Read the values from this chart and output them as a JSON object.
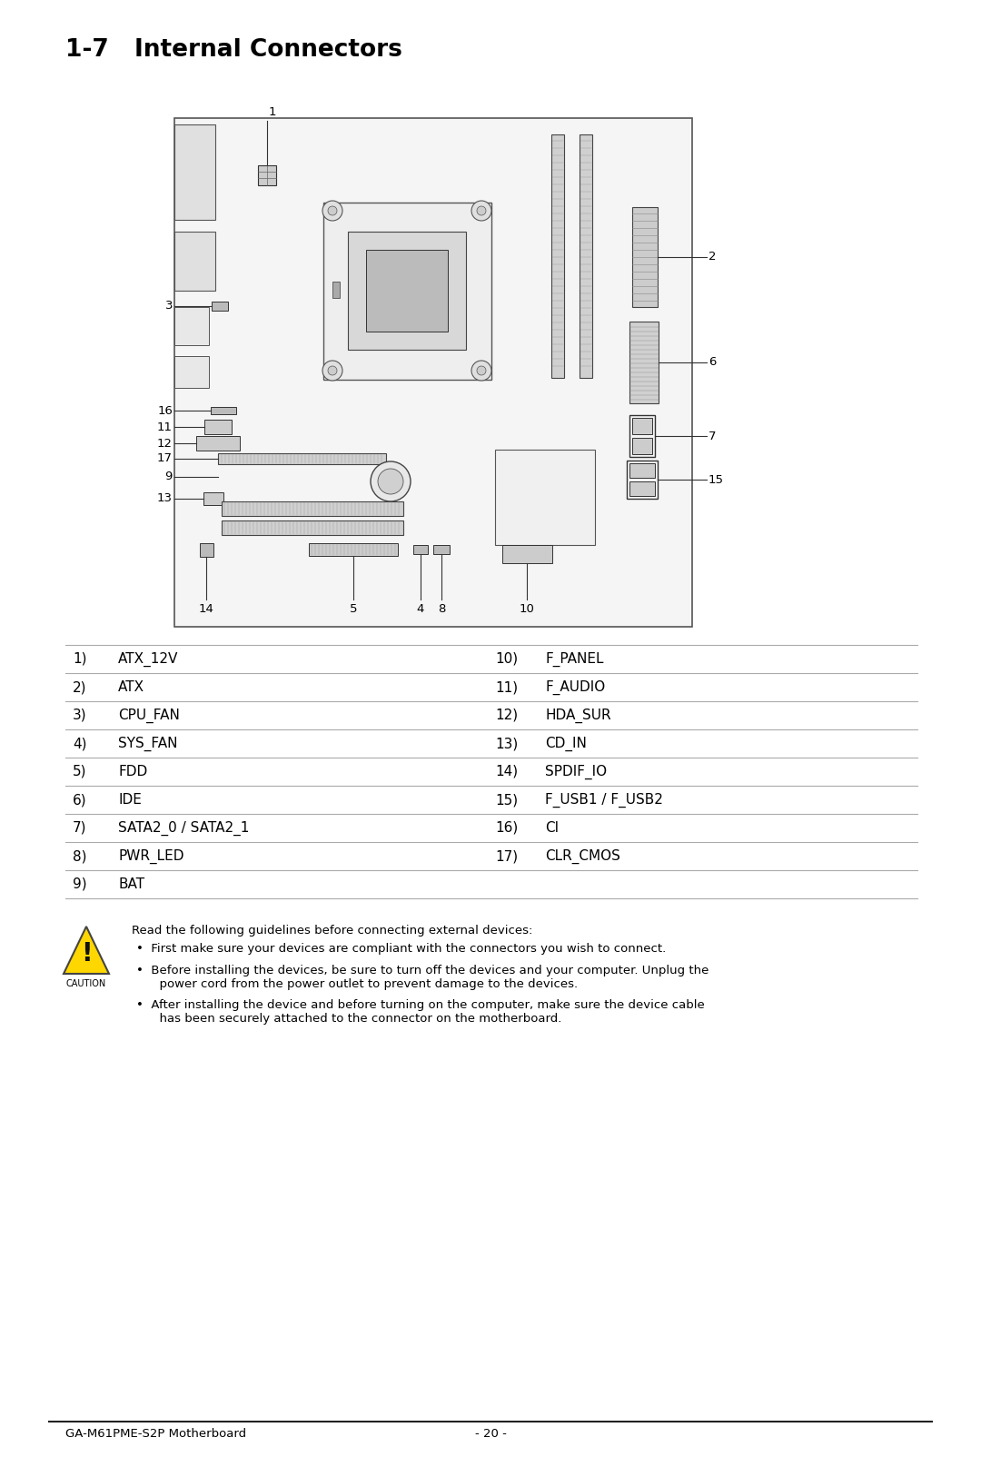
{
  "title_num": "1-7",
  "title_text": "Internal Connectors",
  "bg_color": "#ffffff",
  "text_color": "#000000",
  "table_left": [
    [
      "1)",
      "ATX_12V"
    ],
    [
      "2)",
      "ATX"
    ],
    [
      "3)",
      "CPU_FAN"
    ],
    [
      "4)",
      "SYS_FAN"
    ],
    [
      "5)",
      "FDD"
    ],
    [
      "6)",
      "IDE"
    ],
    [
      "7)",
      "SATA2_0 / SATA2_1"
    ],
    [
      "8)",
      "PWR_LED"
    ],
    [
      "9)",
      "BAT"
    ]
  ],
  "table_right": [
    [
      "10)",
      "F_PANEL"
    ],
    [
      "11)",
      "F_AUDIO"
    ],
    [
      "12)",
      "HDA_SUR"
    ],
    [
      "13)",
      "CD_IN"
    ],
    [
      "14)",
      "SPDIF_IO"
    ],
    [
      "15)",
      "F_USB1 / F_USB2"
    ],
    [
      "16)",
      "CI"
    ],
    [
      "17)",
      "CLR_CMOS"
    ],
    [
      "",
      ""
    ]
  ],
  "caution_title": "Read the following guidelines before connecting external devices:",
  "caution_bullet1": "First make sure your devices are compliant with the connectors you wish to connect.",
  "caution_bullet2a": "Before installing the devices, be sure to turn off the devices and your computer. Unplug the",
  "caution_bullet2b": "power cord from the power outlet to prevent damage to the devices.",
  "caution_bullet3a": "After installing the device and before turning on the computer, make sure the device cable",
  "caution_bullet3b": "has been securely attached to the connector on the motherboard.",
  "footer_left": "GA-M61PME-S2P Motherboard",
  "footer_center": "- 20 -"
}
